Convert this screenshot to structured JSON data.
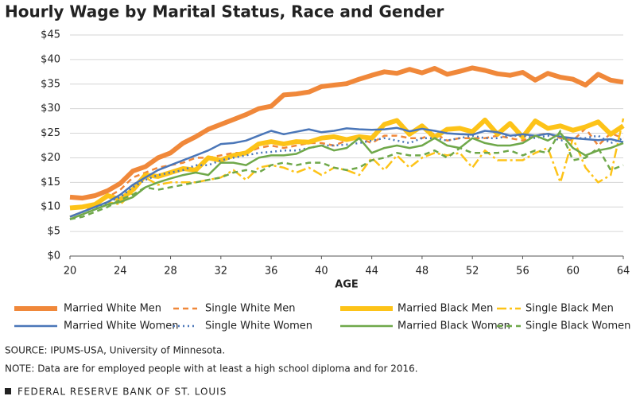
{
  "chart_data": {
    "type": "line",
    "title": "Hourly Wage by Marital Status, Race and Gender",
    "x_label": "AGE",
    "source": "SOURCE: IPUMS-USA, University of Minnesota.",
    "note": "NOTE:  Data are for employed people with at least a high school diploma and for 2016.",
    "footer": "FEDERAL RESERVE BANK OF ST. LOUIS",
    "grid": true,
    "x": [
      20,
      21,
      22,
      23,
      24,
      25,
      26,
      27,
      28,
      29,
      30,
      31,
      32,
      33,
      34,
      35,
      36,
      37,
      38,
      39,
      40,
      41,
      42,
      43,
      44,
      45,
      46,
      47,
      48,
      49,
      50,
      51,
      52,
      53,
      54,
      55,
      56,
      57,
      58,
      59,
      60,
      61,
      62,
      63,
      64
    ],
    "xlim": [
      20,
      64
    ],
    "xticks": [
      20,
      24,
      28,
      32,
      36,
      40,
      44,
      48,
      52,
      56,
      60,
      64
    ],
    "ylim": [
      0,
      45
    ],
    "yticks": [
      {
        "value": 0,
        "label": "$0"
      },
      {
        "value": 5,
        "label": "$5"
      },
      {
        "value": 10,
        "label": "$10"
      },
      {
        "value": 15,
        "label": "$15"
      },
      {
        "value": 20,
        "label": "$20"
      },
      {
        "value": 25,
        "label": "$25"
      },
      {
        "value": 30,
        "label": "$30"
      },
      {
        "value": 35,
        "label": "$35"
      },
      {
        "value": 40,
        "label": "$40"
      },
      {
        "value": 45,
        "label": "$45"
      }
    ],
    "series": [
      {
        "name": "Married White Men",
        "color": "#f0883a",
        "style": "solid",
        "weight": "thick",
        "values": [
          12,
          11.8,
          12.3,
          13.3,
          14.8,
          17.3,
          18.2,
          20,
          21,
          23,
          24.3,
          25.8,
          26.8,
          27.8,
          28.8,
          30,
          30.5,
          32.8,
          33,
          33.4,
          34.5,
          34.8,
          35.1,
          36,
          36.8,
          37.5,
          37.2,
          38,
          37.3,
          38.2,
          37,
          37.6,
          38.3,
          37.8,
          37.1,
          36.8,
          37.4,
          35.8,
          37.2,
          36.4,
          36,
          34.8,
          37,
          35.8,
          35.4
        ]
      },
      {
        "name": "Single White Men",
        "color": "#f0883a",
        "style": "dashed",
        "weight": "thin",
        "values": [
          8,
          9,
          10.5,
          12,
          13.5,
          16,
          17,
          18,
          18.5,
          19,
          20,
          20,
          20.5,
          21,
          21,
          22,
          22.5,
          22,
          22.5,
          23,
          23,
          22.5,
          23.5,
          24,
          23,
          24.5,
          24.5,
          24,
          24,
          25,
          23.5,
          24,
          24,
          24,
          24.5,
          24,
          23.5,
          24.5,
          25,
          24,
          23.5,
          26,
          22.5,
          25,
          24
        ]
      },
      {
        "name": "Married Black Men",
        "color": "#fdc318",
        "style": "solid",
        "weight": "thick",
        "values": [
          9.8,
          10,
          10.5,
          12.3,
          11.5,
          13.5,
          16.5,
          16.2,
          17,
          17.8,
          17.5,
          20,
          19.5,
          20.5,
          21,
          22.8,
          23.3,
          22.8,
          23.3,
          23.2,
          24,
          24.3,
          23.7,
          24.3,
          24,
          26.8,
          27.6,
          24.8,
          26.5,
          24.2,
          25.8,
          26,
          25.3,
          27.7,
          24.8,
          27,
          24.2,
          27.5,
          26,
          26.5,
          25.6,
          26.3,
          27.3,
          24.8,
          26.5
        ]
      },
      {
        "name": "Single Black Men",
        "color": "#fdc318",
        "style": "dashdot",
        "weight": "thin",
        "values": [
          8,
          9,
          10,
          11,
          10.5,
          13,
          16,
          14.5,
          15,
          15,
          15,
          15.5,
          16,
          17.5,
          15.5,
          18,
          18.5,
          18,
          17,
          18,
          16.5,
          18,
          17.5,
          16.5,
          20,
          17.5,
          20.5,
          18,
          20,
          21,
          20.5,
          21,
          18,
          21.5,
          19.5,
          19.5,
          19.5,
          21,
          22,
          15,
          24,
          18,
          15,
          16.5,
          28
        ]
      },
      {
        "name": "Married White Women",
        "color": "#4a76b8",
        "style": "solid",
        "weight": "thin",
        "values": [
          8,
          9,
          10,
          11,
          12.5,
          14.5,
          16,
          17.5,
          18.5,
          19.5,
          20.5,
          21.5,
          22.8,
          23,
          23.5,
          24.5,
          25.5,
          24.8,
          25.3,
          25.8,
          25.2,
          25.5,
          26,
          25.8,
          25.7,
          25.8,
          26.1,
          25.4,
          25.9,
          25.5,
          25,
          24.8,
          24.7,
          25.5,
          25.2,
          24.5,
          24.8,
          24.5,
          24.9,
          24.3,
          24,
          23.8,
          23.6,
          23.8,
          23.2
        ]
      },
      {
        "name": "Single White Women",
        "color": "#4a76b8",
        "style": "dotted",
        "weight": "thin",
        "values": [
          7.5,
          8.5,
          9.5,
          11,
          12,
          14,
          15.5,
          16.5,
          17,
          17.5,
          18.5,
          18.5,
          19.5,
          20,
          20.5,
          21,
          21.2,
          21.5,
          21.5,
          22,
          22.5,
          22.5,
          22.7,
          23,
          23.5,
          24,
          23.5,
          23,
          24,
          24,
          23.5,
          24,
          24.5,
          24,
          24,
          24.5,
          24.5,
          24,
          24.5,
          23.5,
          24,
          24,
          24.5,
          23,
          24
        ]
      },
      {
        "name": "Married Black Women",
        "color": "#6fa84a",
        "style": "solid",
        "weight": "thin",
        "values": [
          7.5,
          8.5,
          9.5,
          10.5,
          11,
          12,
          14,
          15,
          15.8,
          16.5,
          17,
          16.5,
          19,
          19,
          18.5,
          20,
          20.5,
          20.5,
          20.8,
          22,
          22.5,
          21.5,
          22,
          24,
          21,
          22,
          22.5,
          22,
          22.5,
          24,
          22.5,
          22,
          24,
          23,
          22.5,
          22.5,
          23,
          24.5,
          23.5,
          25,
          22,
          20.5,
          21.5,
          22,
          23
        ]
      },
      {
        "name": "Single Black Women",
        "color": "#6fa84a",
        "style": "dashed",
        "weight": "thin",
        "values": [
          7.5,
          8,
          9,
          10,
          11.5,
          12.5,
          14,
          13.5,
          14,
          14.5,
          15,
          15.5,
          16,
          17,
          17.5,
          17,
          18.5,
          19,
          18.5,
          19,
          19,
          18,
          17.5,
          18,
          19.5,
          20,
          21,
          20.5,
          20.5,
          21.5,
          20,
          22,
          21,
          21,
          21,
          21.5,
          20.5,
          21.5,
          21,
          25.5,
          19.5,
          20,
          22,
          17.5,
          18.5
        ]
      }
    ]
  }
}
